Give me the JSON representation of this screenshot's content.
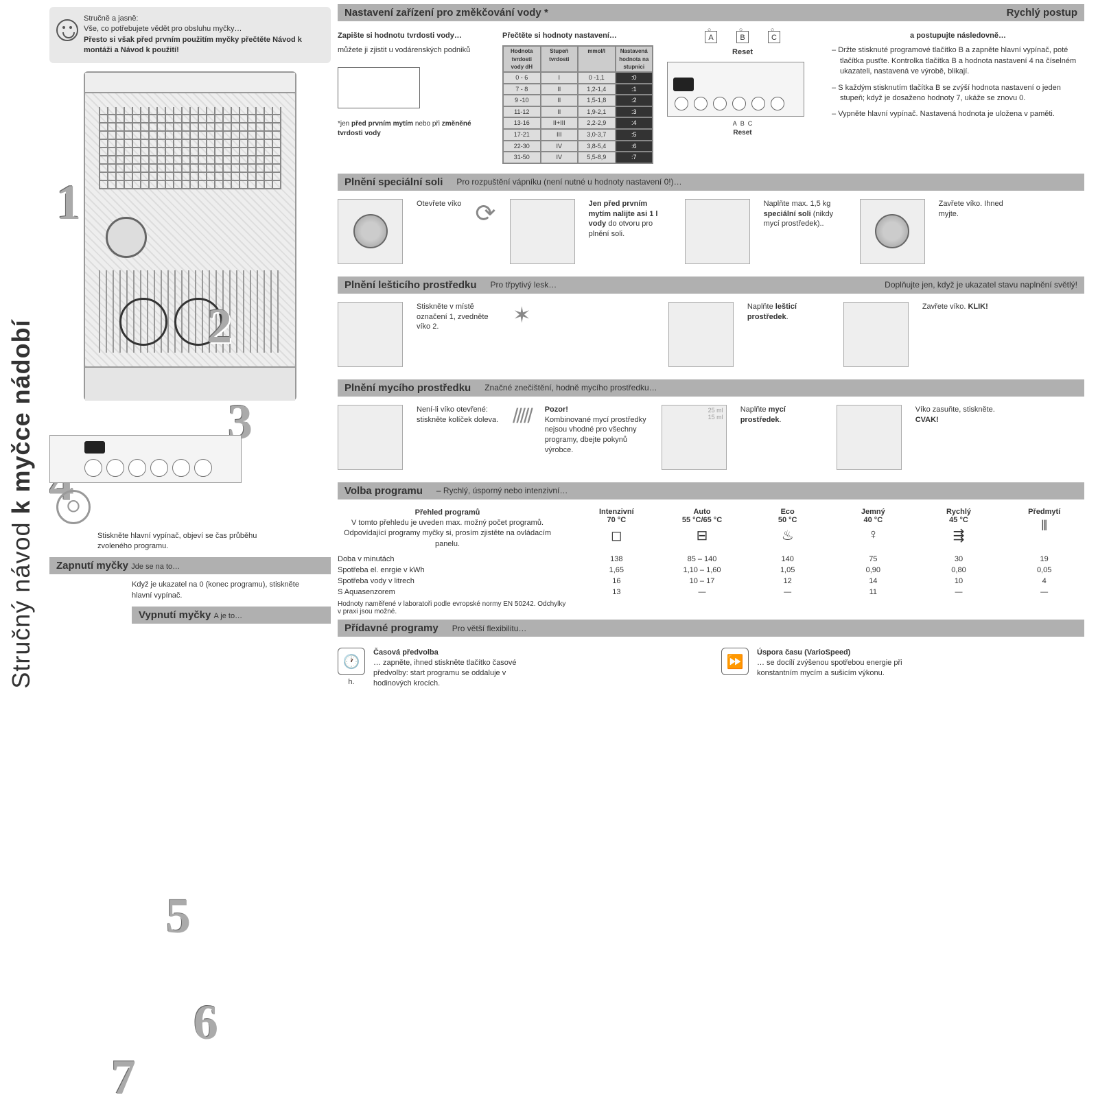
{
  "title_light": "Stručný návod ",
  "title_bold": "k myčce nádobí",
  "intro": {
    "line1": "Stručně a jasně:",
    "line2": "Vše, co potřebujete vědět pro obsluhu myčky…",
    "bold1": "Přesto si však před prvním použitím myčky přečtěte Návod k montáži a Návod k použití!"
  },
  "numbers": {
    "n1": "1",
    "n2": "2",
    "n3": "3",
    "n4": "4",
    "n5": "5",
    "n6": "6",
    "n7": "7"
  },
  "topbar": {
    "title": "Nastavení zařízení pro změkčování vody *",
    "right": "Rychlý postup"
  },
  "hdr": {
    "col1_t": "Zapište si hodnotu tvrdosti vody…",
    "col1": "můžete ji zjistit u vodárenských podniků",
    "note": "*jen před prvním mytím nebo při změněné tvrdosti vody",
    "col2_t": "Přečtěte si hodnoty nastavení…",
    "col4_t": "a postupujte následovně…",
    "reset": "Reset",
    "reset2": "Reset",
    "bul1": "Držte stisknuté programové tlačítko B a zapněte hlavní vypínač, poté tlačítka pusťte. Kontrolka tlačítka B a hodnota nastavení 4 na číselném ukazateli, nastavená ve výrobě, blikají.",
    "bul2": "S každým stisknutím tlačítka B se zvýší hodnota nastavení o jeden stupeň; když je dosaženo hodnoty 7, ukáže se znovu 0.",
    "bul3": "Vypněte hlavní vypínač. Nastavená hodnota je uložena v paměti."
  },
  "hardness_table": {
    "h1": "Hodnota tvrdosti vody dH",
    "h2": "Stupeň tvrdosti",
    "h3": "mmol/l",
    "h4": "Nastavená hodnota na stupnici",
    "rows": [
      [
        "0 - 6",
        "I",
        "0 -1,1",
        ":0"
      ],
      [
        "7 - 8",
        "II",
        "1,2-1,4",
        ":1"
      ],
      [
        "9 -10",
        "II",
        "1,5-1,8",
        ":2"
      ],
      [
        "11-12",
        "II",
        "1,9-2,1",
        ":3"
      ],
      [
        "13-16",
        "II+III",
        "2,2-2,9",
        ":4"
      ],
      [
        "17-21",
        "III",
        "3,0-3,7",
        ":5"
      ],
      [
        "22-30",
        "IV",
        "3,8-5,4",
        ":6"
      ],
      [
        "31-50",
        "IV",
        "5,5-8,9",
        ":7"
      ]
    ]
  },
  "s1": {
    "title": "Plnění speciální soli",
    "sub": "Pro rozpuštění vápníku (není nutné u hodnoty nastavení 0!)…",
    "t1": "Otevřete víko",
    "t2a": "Jen před prvním mytím nalijte asi 1 l vody",
    "t2b": " do otvoru pro plnění soli.",
    "t3a": "Naplňte max. 1,5 kg ",
    "t3b": "speciální soli",
    "t3c": " (nikdy mycí prostředek)..",
    "t4": "Zavřete víko. Ihned myjte."
  },
  "s2": {
    "title": "Plnění lešticího prostředku",
    "sub": "Pro třpytivý lesk…",
    "sub2": "Doplňujte jen, když je ukazatel stavu naplnění světlý!",
    "t1": "Stiskněte v místě označení 1, zvedněte víko 2.",
    "t2a": "Naplňte ",
    "t2b": "lešticí prostředek",
    ".": ".",
    "t3": "Zavřete víko. ",
    "t3b": "KLIK!"
  },
  "s3": {
    "title": "Plnění mycího prostředku",
    "sub": "Značné znečištění, hodně mycího prostředku…",
    "t1": "Není-li víko otevřené: stiskněte kolíček doleva.",
    "warn_t": "Pozor!",
    "warn": "Kombinované mycí prostředky nejsou vhodné pro všechny programy, dbejte pokynů výrobce.",
    "t2a": "Naplňte ",
    "t2b": "mycí prostředek",
    ".": ".",
    "t3": "Víko zasuňte, stiskněte. ",
    "t3b": "CVAK!",
    "ml1": "25 ml",
    "ml2": "15 ml"
  },
  "s4": {
    "title": "Volba programu",
    "sub": "– Rychlý, úsporný nebo intenzivní…"
  },
  "prog": {
    "overview_t": "Přehled programů",
    "overview": "V tomto přehledu je uveden max. možný počet programů. Odpovídající programy myčky si, prosím zjistěte na ovládacím panelu.",
    "norm": "Hodnoty naměřené v laboratoři podle evropské normy EN 50242. Odchylky v praxi jsou možné.",
    "cols": [
      {
        "name": "Intenzivní",
        "temp": "70 °C",
        "icon": "◻"
      },
      {
        "name": "Auto",
        "temp": "55 °C/65 °C",
        "icon": "⊟"
      },
      {
        "name": "Eco",
        "temp": "50 °C",
        "icon": "♨"
      },
      {
        "name": "Jemný",
        "temp": "40 °C",
        "icon": "♀"
      },
      {
        "name": "Rychlý",
        "temp": "45 °C",
        "icon": "⇶"
      },
      {
        "name": "Předmytí",
        "temp": "",
        "icon": "⫴"
      }
    ],
    "r1": {
      "lbl": "Doba v minutách",
      "v": [
        "138",
        "85 – 140",
        "140",
        "75",
        "30",
        "19"
      ]
    },
    "r2": {
      "lbl": "Spotřeba el. enrgie v kWh",
      "v": [
        "1,65",
        "1,10 – 1,60",
        "1,05",
        "0,90",
        "0,80",
        "0,05"
      ]
    },
    "r3": {
      "lbl": "Spotřeba vody v litrech",
      "v": [
        "16",
        "10 – 17",
        "12",
        "14",
        "10",
        "4"
      ]
    },
    "r4": {
      "lbl": "S Aquasenzorem",
      "v": [
        "13",
        "—",
        "—",
        "11",
        "—",
        "—"
      ]
    }
  },
  "s5": {
    "title": "Přídavné programy",
    "sub": "Pro větší flexibilitu…"
  },
  "addon1": {
    "t": "Časová předvolba",
    "txt": "… zapněte, ihned stiskněte tlačítko časové předvolby: start programu se oddaluje v hodinových krocích.",
    "h": "h."
  },
  "addon2": {
    "t": "Úspora času (VarioSpeed)",
    "txt": "… se docílí zvýšenou spotře­bou energie při konstantním mycím a sušicím výkonu."
  },
  "left_notes": {
    "ctrl": "Stiskněte hlavní vypínač, objeví se čas průběhu zvoleného programu.",
    "s6": "Zapnutí myčky",
    "s6s": "Jde se na to…",
    "off_note": "Když je ukazatel na 0 (konec programu), stiskněte hlavní vypínač.",
    "s7": "Vypnutí myčky",
    "s7s": "A je to…"
  }
}
